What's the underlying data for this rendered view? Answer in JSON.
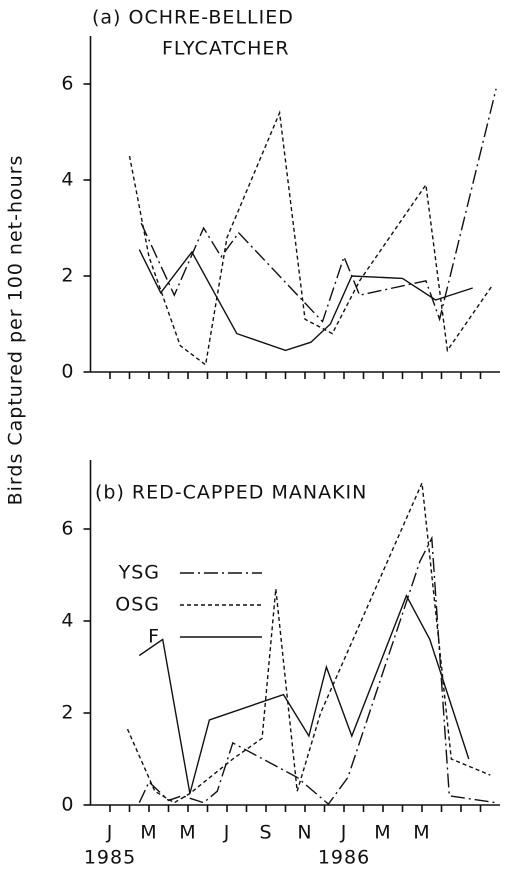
{
  "y_label": "Birds  Captured  per 100 net-hours",
  "chart_data": [
    {
      "type": "line",
      "title": [
        "(a) OCHRE-BELLIED",
        "FLYCATCHER"
      ],
      "xlim": [
        0,
        21
      ],
      "x_minor_ticks": [
        1,
        2,
        3,
        4,
        5,
        6,
        7,
        8,
        9,
        10,
        11,
        12,
        13,
        14,
        15,
        16,
        17,
        18,
        19,
        20
      ],
      "ylim": [
        0,
        7
      ],
      "yticks": [
        0,
        2,
        4,
        6
      ],
      "series": [
        {
          "name": "YSG",
          "color": "#111111",
          "style": "dash-dot",
          "x": [
            2.6,
            4.3,
            5.8,
            6.7,
            7.6,
            11.9,
            13,
            13.8,
            17.2,
            17.9,
            20.8
          ],
          "values": [
            3.1,
            1.6,
            3.0,
            2.4,
            2.9,
            1.05,
            2.4,
            1.6,
            1.9,
            1.1,
            5.9
          ]
        },
        {
          "name": "OSG",
          "color": "#111111",
          "style": "dotted",
          "x": [
            2,
            3,
            4.6,
            5.9,
            7,
            9.7,
            11,
            12.4,
            13.8,
            17.2,
            18.3,
            20.6
          ],
          "values": [
            4.5,
            2.4,
            0.55,
            0.15,
            2.8,
            5.4,
            1.1,
            0.8,
            1.9,
            3.9,
            0.45,
            1.8
          ]
        },
        {
          "name": "F",
          "color": "#111111",
          "style": "solid",
          "x": [
            2.5,
            3.6,
            5.2,
            7.5,
            10,
            11.3,
            12.3,
            13.4,
            16,
            17.7,
            19.6
          ],
          "values": [
            2.55,
            1.65,
            2.5,
            0.8,
            0.45,
            0.62,
            1.0,
            2.0,
            1.95,
            1.5,
            1.75
          ]
        }
      ]
    },
    {
      "type": "line",
      "title": [
        "(b) RED-CAPPED  MANAKIN"
      ],
      "xlim": [
        0,
        21
      ],
      "x_minor_ticks": [
        1,
        2,
        3,
        4,
        5,
        6,
        7,
        8,
        9,
        10,
        11,
        12,
        13,
        14,
        15,
        16,
        17,
        18,
        19,
        20
      ],
      "xticks": [
        {
          "value": 1,
          "label": "J"
        },
        {
          "value": 3,
          "label": "M"
        },
        {
          "value": 5,
          "label": "M"
        },
        {
          "value": 7,
          "label": "J"
        },
        {
          "value": 9,
          "label": "S"
        },
        {
          "value": 11,
          "label": "N"
        },
        {
          "value": 13,
          "label": "J"
        },
        {
          "value": 15,
          "label": "M"
        },
        {
          "value": 17,
          "label": "M"
        }
      ],
      "year_labels": [
        {
          "value": 1,
          "label": "1985"
        },
        {
          "value": 13,
          "label": "1986"
        }
      ],
      "ylim": [
        0,
        7.5
      ],
      "yticks": [
        0,
        2,
        4,
        6
      ],
      "legend": "upper left",
      "series": [
        {
          "name": "YSG",
          "color": "#111111",
          "style": "dash-dot",
          "x": [
            2.5,
            3,
            4,
            4.7,
            5.8,
            6.5,
            7.3,
            10.6,
            12.2,
            13.2,
            16.9,
            17.5,
            18.4,
            20.8
          ],
          "values": [
            0.05,
            0.5,
            0.1,
            0.2,
            0.05,
            0.3,
            1.35,
            0.6,
            0.02,
            0.6,
            5.3,
            5.8,
            0.2,
            0.05
          ]
        },
        {
          "name": "OSG",
          "color": "#111111",
          "style": "dotted",
          "x": [
            1.9,
            3.3,
            4.3,
            5.1,
            7.3,
            8.8,
            9.5,
            10.6,
            11.8,
            17,
            18.5,
            20.5
          ],
          "values": [
            1.65,
            0.3,
            0.05,
            0.25,
            1.0,
            1.45,
            4.7,
            0.3,
            2.0,
            7.0,
            1.0,
            0.65
          ]
        },
        {
          "name": "F",
          "color": "#111111",
          "style": "solid",
          "x": [
            2.5,
            3.7,
            5.1,
            6.1,
            9.9,
            11.2,
            12.1,
            13.4,
            16.2,
            17.4,
            19.4
          ],
          "values": [
            3.25,
            3.6,
            0.25,
            1.85,
            2.4,
            1.5,
            3.0,
            1.5,
            4.55,
            3.6,
            1.0
          ]
        }
      ]
    }
  ]
}
